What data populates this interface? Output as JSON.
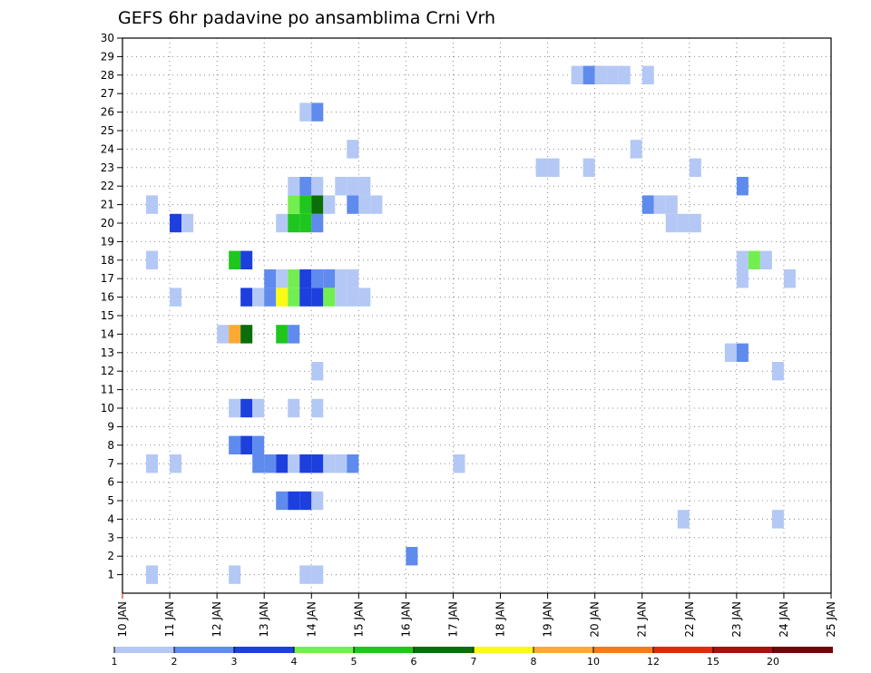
{
  "chart_data": {
    "type": "heatmap",
    "title": "GEFS 6hr padavine po ansamblima Crni Vrh",
    "xlabel": "",
    "ylabel": "",
    "x_tick_labels": [
      "10 JAN",
      "11 JAN",
      "12 JAN",
      "13 JAN",
      "14 JAN",
      "15 JAN",
      "16 JAN",
      "17 JAN",
      "18 JAN",
      "19 JAN",
      "20 JAN",
      "21 JAN",
      "22 JAN",
      "23 JAN",
      "24 JAN",
      "25 JAN"
    ],
    "xlim_days": [
      10,
      25
    ],
    "y_tick_labels": [
      "1",
      "2",
      "3",
      "4",
      "5",
      "6",
      "7",
      "8",
      "9",
      "10",
      "11",
      "12",
      "13",
      "14",
      "15",
      "16",
      "17",
      "18",
      "19",
      "20",
      "21",
      "22",
      "23",
      "24",
      "25",
      "26",
      "27",
      "28",
      "29",
      "30"
    ],
    "ylim": [
      0,
      30
    ],
    "grid": true,
    "colorbar": {
      "labels": [
        "1",
        "2",
        "3",
        "4",
        "5",
        "6",
        "7",
        "8",
        "10",
        "12",
        "15",
        "20"
      ],
      "colors": [
        "#b4c8f5",
        "#5f8bee",
        "#1c3fde",
        "#73ee50",
        "#1ec61e",
        "#0b6e0b",
        "#fafa14",
        "#faaa32",
        "#f57a1a",
        "#e02a10",
        "#a81010",
        "#6e0808"
      ]
    },
    "cell_width_days": 0.25,
    "cells": [
      [
        10.5,
        1,
        0
      ],
      [
        12.25,
        1,
        0
      ],
      [
        13.75,
        1,
        0
      ],
      [
        14.0,
        1,
        0
      ],
      [
        16.0,
        2,
        1
      ],
      [
        21.75,
        4,
        0
      ],
      [
        23.75,
        4,
        0
      ],
      [
        13.25,
        5,
        1
      ],
      [
        13.5,
        5,
        2
      ],
      [
        13.75,
        5,
        2
      ],
      [
        14.0,
        5,
        0
      ],
      [
        10.5,
        7,
        0
      ],
      [
        11.0,
        7,
        0
      ],
      [
        12.75,
        7,
        1
      ],
      [
        13.0,
        7,
        1
      ],
      [
        13.25,
        7,
        2
      ],
      [
        13.5,
        7,
        0
      ],
      [
        13.75,
        7,
        2
      ],
      [
        14.0,
        7,
        2
      ],
      [
        14.25,
        7,
        0
      ],
      [
        14.5,
        7,
        0
      ],
      [
        14.75,
        7,
        1
      ],
      [
        17.0,
        7,
        0
      ],
      [
        12.25,
        8,
        1
      ],
      [
        12.5,
        8,
        2
      ],
      [
        12.75,
        8,
        1
      ],
      [
        12.25,
        10,
        0
      ],
      [
        12.5,
        10,
        2
      ],
      [
        12.75,
        10,
        0
      ],
      [
        13.5,
        10,
        0
      ],
      [
        14.0,
        10,
        0
      ],
      [
        14.0,
        12,
        0
      ],
      [
        23.75,
        12,
        0
      ],
      [
        22.75,
        13,
        0
      ],
      [
        23.0,
        13,
        1
      ],
      [
        12.0,
        14,
        0
      ],
      [
        12.25,
        14,
        7
      ],
      [
        12.5,
        14,
        5
      ],
      [
        13.25,
        14,
        4
      ],
      [
        13.5,
        14,
        1
      ],
      [
        11.0,
        16,
        0
      ],
      [
        12.5,
        16,
        2
      ],
      [
        12.75,
        16,
        0
      ],
      [
        13.0,
        16,
        1
      ],
      [
        13.25,
        16,
        6
      ],
      [
        13.5,
        16,
        3
      ],
      [
        13.75,
        16,
        2
      ],
      [
        14.0,
        16,
        2
      ],
      [
        14.25,
        16,
        3
      ],
      [
        14.5,
        16,
        0
      ],
      [
        14.75,
        16,
        0
      ],
      [
        15.0,
        16,
        0
      ],
      [
        13.0,
        17,
        1
      ],
      [
        13.25,
        17,
        0
      ],
      [
        13.5,
        17,
        3
      ],
      [
        13.75,
        17,
        2
      ],
      [
        14.0,
        17,
        1
      ],
      [
        14.25,
        17,
        1
      ],
      [
        14.5,
        17,
        0
      ],
      [
        14.75,
        17,
        0
      ],
      [
        23.0,
        17,
        0
      ],
      [
        24.0,
        17,
        0
      ],
      [
        10.5,
        18,
        0
      ],
      [
        12.25,
        18,
        4
      ],
      [
        12.5,
        18,
        2
      ],
      [
        23.0,
        18,
        0
      ],
      [
        23.25,
        18,
        3
      ],
      [
        23.5,
        18,
        0
      ],
      [
        13.25,
        20,
        0
      ],
      [
        13.5,
        20,
        4
      ],
      [
        13.75,
        20,
        4
      ],
      [
        14.0,
        20,
        1
      ],
      [
        11.0,
        20,
        2
      ],
      [
        11.25,
        20,
        0
      ],
      [
        21.5,
        20,
        0
      ],
      [
        21.75,
        20,
        0
      ],
      [
        22.0,
        20,
        0
      ],
      [
        10.5,
        21,
        0
      ],
      [
        13.5,
        21,
        3
      ],
      [
        13.75,
        21,
        4
      ],
      [
        14.0,
        21,
        5
      ],
      [
        14.25,
        21,
        0
      ],
      [
        14.75,
        21,
        1
      ],
      [
        15.0,
        21,
        0
      ],
      [
        15.25,
        21,
        0
      ],
      [
        21.0,
        21,
        1
      ],
      [
        21.25,
        21,
        0
      ],
      [
        21.5,
        21,
        0
      ],
      [
        13.5,
        22,
        0
      ],
      [
        13.75,
        22,
        1
      ],
      [
        14.0,
        22,
        0
      ],
      [
        14.5,
        22,
        0
      ],
      [
        14.75,
        22,
        0
      ],
      [
        15.0,
        22,
        0
      ],
      [
        23.0,
        22,
        1
      ],
      [
        18.75,
        23,
        0
      ],
      [
        19.0,
        23,
        0
      ],
      [
        19.75,
        23,
        0
      ],
      [
        22.0,
        23,
        0
      ],
      [
        14.75,
        24,
        0
      ],
      [
        20.75,
        24,
        0
      ],
      [
        13.75,
        26,
        0
      ],
      [
        14.0,
        26,
        1
      ],
      [
        19.5,
        28,
        0
      ],
      [
        19.75,
        28,
        1
      ],
      [
        20.0,
        28,
        0
      ],
      [
        20.25,
        28,
        0
      ],
      [
        20.5,
        28,
        0
      ],
      [
        21.0,
        28,
        0
      ]
    ]
  }
}
